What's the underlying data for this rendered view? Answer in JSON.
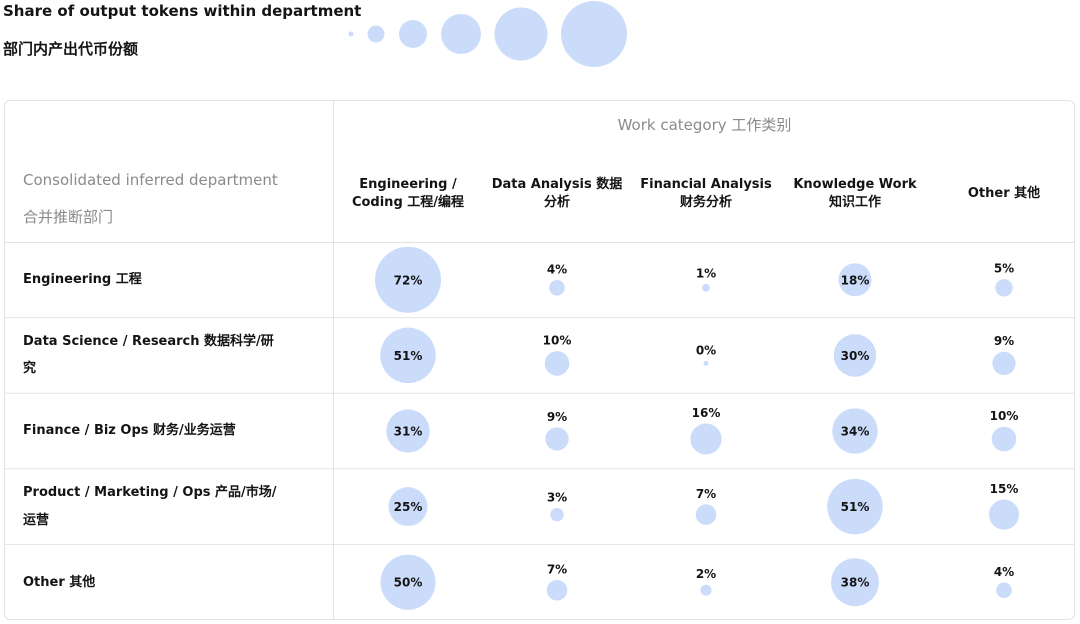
{
  "chart_data": {
    "type": "bubble-table",
    "title": "Share of output tokens within department",
    "subtitle": "部门内产出代币份额",
    "column_title": "Work category  工作类别",
    "row_title": "Consolidated inferred department",
    "row_subtitle": "合并推断部门",
    "color": "#cbdcfb",
    "categories": [
      "Engineering / Coding  工程/编程",
      "Data Analysis  数据分析",
      "Financial Analysis  财务分析",
      "Knowledge Work  知识工作",
      "Other  其他"
    ],
    "series": [
      {
        "name": "Engineering  工程",
        "values": [
          72,
          4,
          1,
          18,
          5
        ],
        "value_labels": [
          "72%",
          "4%",
          "1%",
          "18%",
          "5%"
        ]
      },
      {
        "name": "Data Science / Research  数据科学/研究",
        "values": [
          51,
          10,
          0,
          30,
          9
        ],
        "value_labels": [
          "51%",
          "10%",
          "0%",
          "30%",
          "9%"
        ]
      },
      {
        "name": "Finance / Biz Ops 财务/业务运营",
        "values": [
          31,
          9,
          16,
          34,
          10
        ],
        "value_labels": [
          "31%",
          "9%",
          "16%",
          "34%",
          "10%"
        ]
      },
      {
        "name": "Product / Marketing / Ops 产品/市场/运营",
        "values": [
          25,
          3,
          7,
          51,
          15
        ],
        "value_labels": [
          "25%",
          "3%",
          "7%",
          "51%",
          "15%"
        ]
      },
      {
        "name": "Other  其他",
        "values": [
          50,
          7,
          2,
          38,
          4
        ],
        "value_labels": [
          "50%",
          "7%",
          "2%",
          "38%",
          "4%"
        ]
      }
    ]
  }
}
